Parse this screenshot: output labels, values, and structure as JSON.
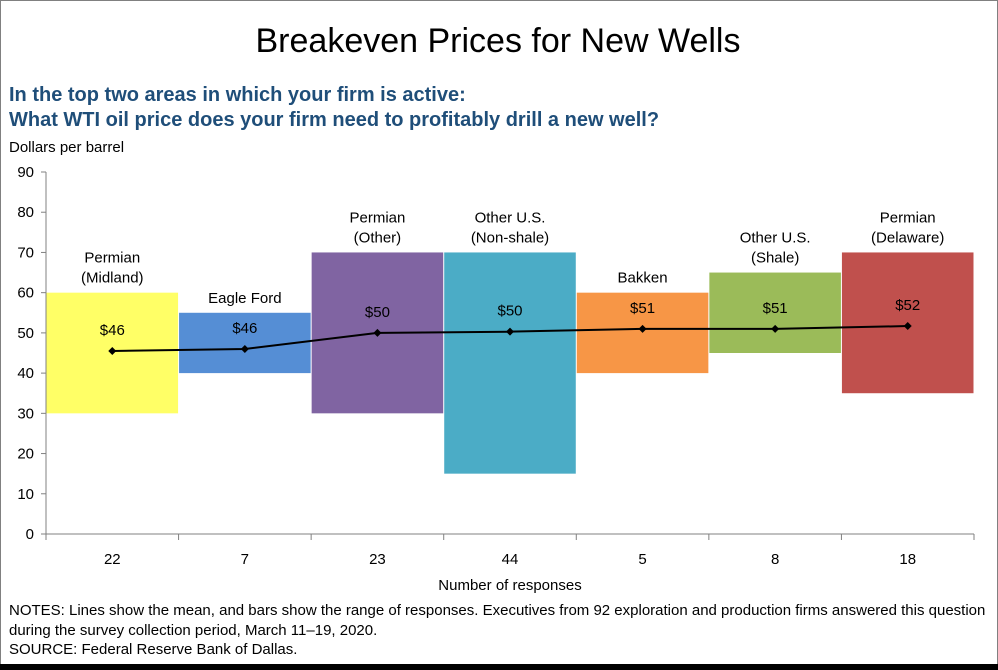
{
  "chart_data": {
    "type": "bar",
    "title": "Breakeven Prices for New Wells",
    "subtitle_lines": [
      "In the top two areas in which your firm is active:",
      "What WTI oil price does your firm need to profitably drill a new well?"
    ],
    "ylabel": "Dollars per barrel",
    "xlabel": "Number of responses",
    "ylim": [
      0,
      90
    ],
    "yticks": [
      "0",
      "10",
      "20",
      "30",
      "40",
      "50",
      "60",
      "70",
      "80",
      "90"
    ],
    "grid": false,
    "categories": [
      "22",
      "7",
      "23",
      "44",
      "5",
      "8",
      "18"
    ],
    "regions": [
      {
        "label": [
          "Permian",
          "(Midland)"
        ],
        "low": 30,
        "high": 60,
        "mean": 45.5,
        "mean_label": "$46",
        "color": "#ffff66"
      },
      {
        "label": [
          "Eagle Ford"
        ],
        "low": 40,
        "high": 55,
        "mean": 46,
        "mean_label": "$46",
        "color": "#558ed5"
      },
      {
        "label": [
          "Permian",
          "(Other)"
        ],
        "low": 30,
        "high": 70,
        "mean": 50,
        "mean_label": "$50",
        "color": "#8064a2"
      },
      {
        "label": [
          "Other U.S.",
          "(Non-shale)"
        ],
        "low": 15,
        "high": 70,
        "mean": 50.3,
        "mean_label": "$50",
        "color": "#4bacc6"
      },
      {
        "label": [
          "Bakken"
        ],
        "low": 40,
        "high": 60,
        "mean": 51,
        "mean_label": "$51",
        "color": "#f79646"
      },
      {
        "label": [
          "Other U.S.",
          "(Shale)"
        ],
        "low": 45,
        "high": 65,
        "mean": 51,
        "mean_label": "$51",
        "color": "#9bbb59"
      },
      {
        "label": [
          "Permian",
          "(Delaware)"
        ],
        "low": 35,
        "high": 70,
        "mean": 51.7,
        "mean_label": "$52",
        "color": "#c0504d"
      }
    ],
    "series": [
      {
        "values": [
          45.5,
          46,
          50,
          50.3,
          51,
          51,
          51.7
        ]
      }
    ]
  },
  "notes": [
    "NOTES: Lines show the mean, and bars show the range of responses. Executives from 92 exploration and production firms answered this question during the survey collection period, March 11–19, 2020.",
    "SOURCE: Federal Reserve Bank of Dallas."
  ],
  "colors": {
    "subtitle": "#1f4e79",
    "line": "#000000",
    "axis": "#808080"
  }
}
